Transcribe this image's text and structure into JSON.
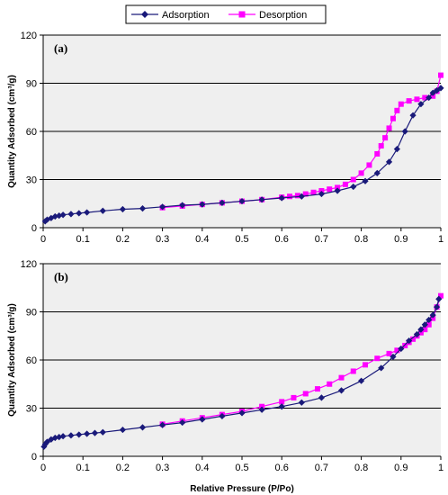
{
  "legend": {
    "items": [
      {
        "label": "Adsorption",
        "color": "#1a1a7a",
        "marker": "diamond"
      },
      {
        "label": "Desorption",
        "color": "#ff00ff",
        "marker": "square"
      }
    ]
  },
  "xlabel": "Relative Pressure (P/Po)",
  "colors": {
    "adsorption": "#1a1a7a",
    "desorption": "#ff00ff",
    "plot_background": "#efefef",
    "grid": "#000000"
  },
  "chart_data": [
    {
      "type": "line",
      "panel_label": "(a)",
      "ylabel": "Quantity Adsorbed (cm³/g)",
      "xlim": [
        0,
        1
      ],
      "ylim": [
        0,
        120
      ],
      "x_ticks": [
        "0",
        "0.1",
        "0.2",
        "0.3",
        "0.4",
        "0.5",
        "0.6",
        "0.7",
        "0.8",
        "0.9",
        "1"
      ],
      "y_ticks": [
        "0",
        "30",
        "60",
        "90",
        "120"
      ],
      "grid": "horizontal",
      "series": [
        {
          "name": "Adsorption",
          "x": [
            0.005,
            0.01,
            0.02,
            0.03,
            0.04,
            0.05,
            0.07,
            0.09,
            0.11,
            0.15,
            0.2,
            0.25,
            0.3,
            0.35,
            0.4,
            0.45,
            0.5,
            0.55,
            0.6,
            0.65,
            0.7,
            0.74,
            0.78,
            0.81,
            0.84,
            0.87,
            0.89,
            0.91,
            0.93,
            0.95,
            0.97,
            0.98,
            0.99,
            1.0
          ],
          "y": [
            4.0,
            5.0,
            6.0,
            7.0,
            7.5,
            8.0,
            8.5,
            9.0,
            9.5,
            10.5,
            11.5,
            12.0,
            13.0,
            14.0,
            14.5,
            15.5,
            16.5,
            17.5,
            18.5,
            19.5,
            21.0,
            23.0,
            25.5,
            29.0,
            34.0,
            41.0,
            49.0,
            60.0,
            70.0,
            77.0,
            81.0,
            84.0,
            85.5,
            87.0
          ]
        },
        {
          "name": "Desorption",
          "x": [
            0.3,
            0.35,
            0.4,
            0.45,
            0.5,
            0.55,
            0.6,
            0.62,
            0.64,
            0.66,
            0.68,
            0.7,
            0.72,
            0.74,
            0.76,
            0.78,
            0.8,
            0.82,
            0.84,
            0.85,
            0.86,
            0.87,
            0.88,
            0.89,
            0.9,
            0.92,
            0.94,
            0.96,
            0.98,
            0.99,
            1.0
          ],
          "y": [
            12.5,
            13.5,
            14.5,
            15.5,
            16.5,
            17.5,
            19.0,
            19.5,
            20.0,
            21.0,
            22.0,
            23.0,
            24.0,
            25.0,
            27.0,
            30.0,
            34.0,
            39.0,
            46.0,
            51.0,
            56.0,
            62.0,
            68.0,
            73.0,
            77.0,
            79.0,
            80.0,
            81.0,
            82.0,
            85.0,
            95.0
          ]
        }
      ]
    },
    {
      "type": "line",
      "panel_label": "(b)",
      "ylabel": "Quantity Adsorbed (cm³/g)",
      "xlim": [
        0,
        1
      ],
      "ylim": [
        0,
        120
      ],
      "x_ticks": [
        "0",
        "0.1",
        "0.2",
        "0.3",
        "0.4",
        "0.5",
        "0.6",
        "0.7",
        "0.8",
        "0.9",
        "1"
      ],
      "y_ticks": [
        "0",
        "30",
        "60",
        "90",
        "120"
      ],
      "grid": "horizontal",
      "series": [
        {
          "name": "Adsorption",
          "x": [
            0.002,
            0.005,
            0.01,
            0.02,
            0.03,
            0.04,
            0.05,
            0.07,
            0.09,
            0.11,
            0.13,
            0.15,
            0.2,
            0.25,
            0.3,
            0.35,
            0.4,
            0.45,
            0.5,
            0.55,
            0.6,
            0.65,
            0.7,
            0.75,
            0.8,
            0.85,
            0.88,
            0.9,
            0.92,
            0.94,
            0.95,
            0.96,
            0.97,
            0.98,
            0.99,
            0.995
          ],
          "y": [
            6.0,
            7.5,
            9.0,
            10.5,
            11.5,
            12.0,
            12.5,
            13.0,
            13.5,
            14.0,
            14.5,
            15.0,
            16.5,
            18.0,
            19.5,
            21.0,
            23.0,
            25.0,
            27.0,
            29.0,
            31.0,
            33.5,
            36.5,
            41.0,
            47.0,
            55.0,
            62.0,
            67.0,
            72.0,
            76.0,
            79.0,
            82.0,
            85.0,
            88.0,
            93.0,
            98.0
          ]
        },
        {
          "name": "Desorption",
          "x": [
            0.3,
            0.35,
            0.4,
            0.45,
            0.5,
            0.55,
            0.6,
            0.63,
            0.66,
            0.69,
            0.72,
            0.75,
            0.78,
            0.81,
            0.84,
            0.87,
            0.89,
            0.91,
            0.92,
            0.93,
            0.94,
            0.95,
            0.96,
            0.97,
            0.98,
            0.99,
            1.0
          ],
          "y": [
            20.0,
            22.0,
            24.0,
            26.0,
            28.0,
            31.0,
            34.0,
            36.5,
            39.0,
            42.0,
            45.0,
            49.0,
            53.0,
            57.0,
            61.0,
            64.0,
            66.0,
            69.0,
            71.0,
            73.0,
            75.0,
            77.0,
            79.0,
            82.0,
            86.0,
            93.0,
            100.0
          ]
        }
      ]
    }
  ]
}
